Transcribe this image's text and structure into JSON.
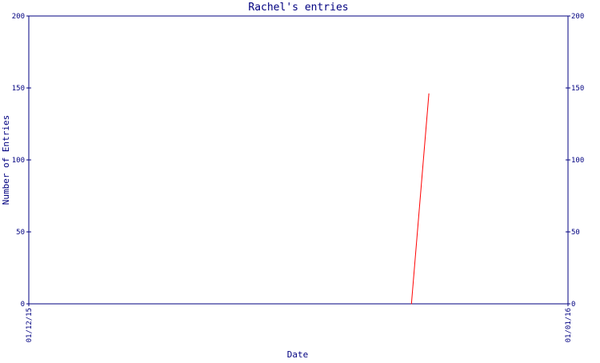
{
  "chart_data": {
    "type": "line",
    "title": "Rachel's entries",
    "xlabel": "Date",
    "ylabel": "Number of Entries",
    "x_tick_labels": [
      "01/12/15",
      "01/01/16"
    ],
    "x_domain": [
      "2015-12-01",
      "2016-01-01"
    ],
    "y_ticks": [
      0,
      50,
      100,
      150,
      200
    ],
    "ylim": [
      0,
      200
    ],
    "right_axis": true,
    "grid": false,
    "series": [
      {
        "x": [
          "2015-12-23",
          "2015-12-24"
        ],
        "y": [
          0,
          146
        ]
      }
    ],
    "colors": {
      "axis": "#000080",
      "text": "#000080",
      "line": "#ff0000",
      "background": "#ffffff"
    }
  }
}
